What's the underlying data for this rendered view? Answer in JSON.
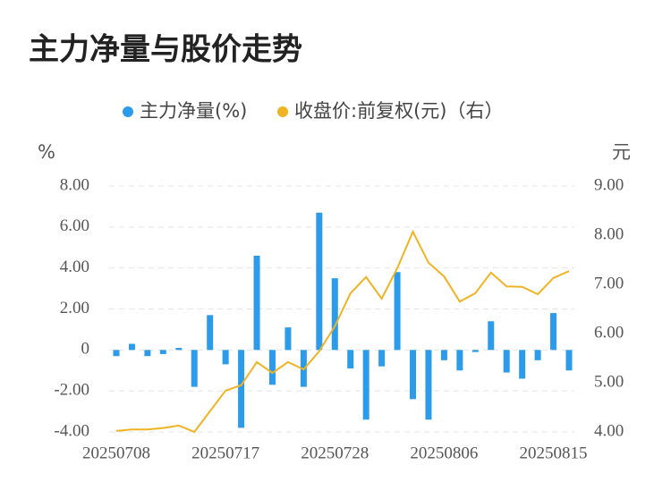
{
  "chart_data": {
    "type": "bar_line",
    "title": "主力净量与股价走势",
    "y_label": "%",
    "y2_label": "元",
    "categories": [
      "20250708",
      null,
      null,
      null,
      null,
      null,
      null,
      "20250717",
      null,
      null,
      null,
      null,
      null,
      null,
      "20250728",
      null,
      null,
      null,
      null,
      null,
      null,
      "20250806",
      null,
      null,
      null,
      null,
      null,
      null,
      "20250815",
      null
    ],
    "series": [
      {
        "name": "主力净量(%)",
        "color": "#2b9bea",
        "type": "bar",
        "axis": "y",
        "values": [
          -0.3,
          0.3,
          -0.3,
          -0.2,
          0.1,
          -1.8,
          1.7,
          -0.7,
          -3.8,
          4.6,
          -1.7,
          1.1,
          -1.8,
          6.7,
          3.5,
          -0.9,
          -3.4,
          -0.8,
          3.8,
          -2.4,
          -3.4,
          -0.5,
          -1.0,
          -0.1,
          1.4,
          -1.1,
          -1.4,
          -0.5,
          1.8,
          -1.0
        ]
      },
      {
        "name": "收盘价:前复权(元)（右）",
        "color": "#f0b323",
        "type": "line",
        "axis": "y2",
        "values": [
          4.02,
          4.05,
          4.05,
          4.08,
          4.13,
          4.0,
          4.42,
          4.84,
          4.95,
          5.42,
          5.2,
          5.42,
          5.27,
          5.64,
          6.15,
          6.82,
          7.15,
          6.71,
          7.33,
          8.07,
          7.44,
          7.16,
          6.65,
          6.82,
          7.24,
          6.96,
          6.95,
          6.8,
          7.13,
          7.27
        ]
      }
    ],
    "ylim": [
      -4,
      8
    ],
    "yticks": [
      {
        "value": -4,
        "label": "-4.00"
      },
      {
        "value": -2,
        "label": "-2.00"
      },
      0,
      {
        "value": 2,
        "label": "2.00"
      },
      {
        "value": 4,
        "label": "4.00"
      },
      {
        "value": 6,
        "label": "6.00"
      },
      {
        "value": 8,
        "label": "8.00"
      }
    ],
    "y2lim": [
      4,
      9
    ],
    "y2ticks": [
      {
        "value": 4,
        "label": "4.00"
      },
      {
        "value": 5,
        "label": "5.00"
      },
      {
        "value": 6,
        "label": "6.00"
      },
      {
        "value": 7,
        "label": "7.00"
      },
      {
        "value": 8,
        "label": "8.00"
      },
      {
        "value": 9,
        "label": "9.00"
      }
    ],
    "grid": true,
    "legend": "top"
  }
}
